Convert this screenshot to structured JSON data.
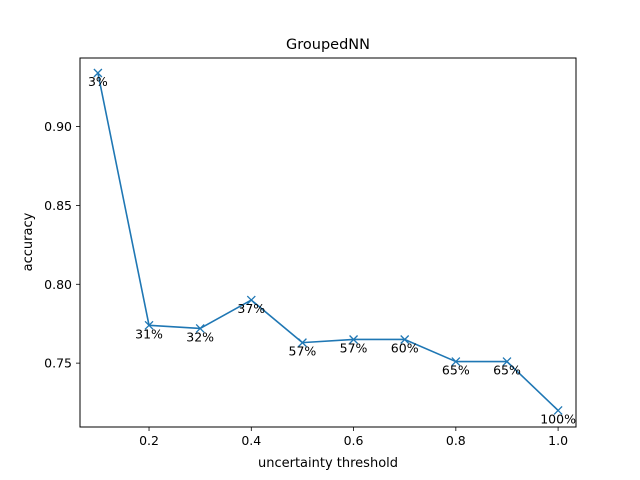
{
  "chart_data": {
    "type": "line",
    "title": "GroupedNN",
    "xlabel": "uncertainty threshold",
    "ylabel": "accuracy",
    "xlim": [
      0.065,
      1.035
    ],
    "ylim": [
      0.7095,
      0.9435
    ],
    "xticks": [
      0.2,
      0.4,
      0.6,
      0.8,
      1.0
    ],
    "xtick_labels": [
      "0.2",
      "0.4",
      "0.6",
      "0.8",
      "1.0"
    ],
    "yticks": [
      0.75,
      0.8,
      0.85,
      0.9
    ],
    "ytick_labels": [
      "0.75",
      "0.80",
      "0.85",
      "0.90"
    ],
    "grid": false,
    "marker": "x",
    "line_color": "#1f77b4",
    "series": [
      {
        "x": [
          0.1,
          0.2,
          0.3,
          0.4,
          0.5,
          0.6,
          0.7,
          0.8,
          0.9,
          1.0
        ],
        "values": [
          0.934,
          0.774,
          0.772,
          0.79,
          0.763,
          0.765,
          0.765,
          0.751,
          0.751,
          0.72
        ],
        "labels": [
          "3%",
          "31%",
          "32%",
          "37%",
          "57%",
          "57%",
          "60%",
          "65%",
          "65%",
          "100%"
        ]
      }
    ]
  }
}
